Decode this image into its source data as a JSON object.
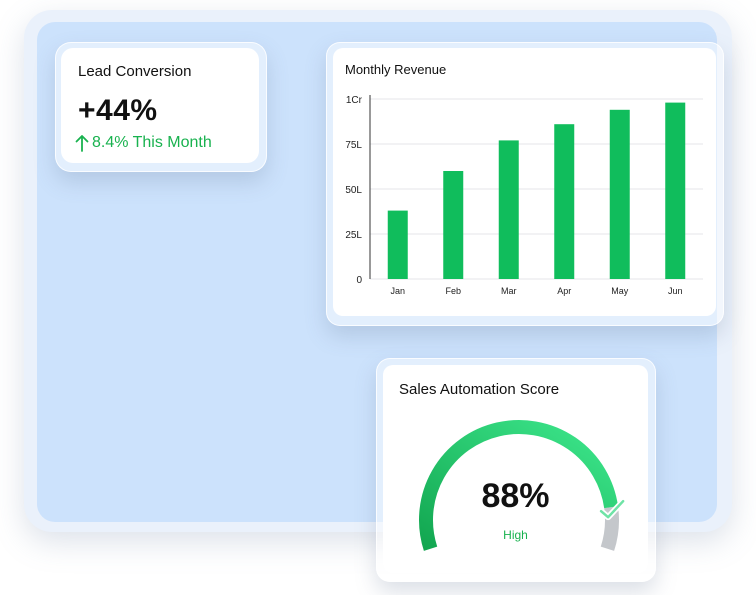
{
  "lead_conversion": {
    "title": "Lead Conversion",
    "value": "+44%",
    "change": "8.4% This Month",
    "trend_icon": "arrow-up-icon"
  },
  "monthly_revenue": {
    "title": "Monthly Revenue"
  },
  "sales_automation": {
    "title": "Sales Automation Score",
    "value_text": "88%",
    "level": "High",
    "score": 88
  },
  "colors": {
    "accent_green": "#19b24f",
    "bar_green": "#10bd5c",
    "panel_blue": "#cce2fc",
    "gauge_track": "#c4c7cb"
  },
  "chart_data": {
    "type": "bar",
    "title": "Monthly Revenue",
    "categories": [
      "Jan",
      "Feb",
      "Mar",
      "Apr",
      "May",
      "Jun"
    ],
    "values": [
      38,
      60,
      77,
      86,
      94,
      98
    ],
    "unit_scale": "lakh",
    "y_ticks": [
      "0",
      "25L",
      "50L",
      "75L",
      "1Cr"
    ],
    "ylim": [
      0,
      100
    ],
    "grid": true,
    "legend": "none"
  }
}
